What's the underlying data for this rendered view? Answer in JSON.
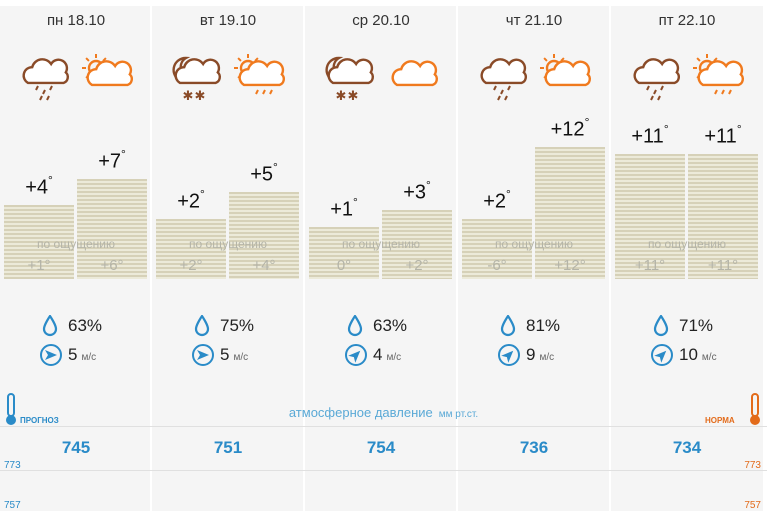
{
  "days": [
    {
      "date": "пн 18.10",
      "icons": [
        "rain-cloud",
        "sun-cloud"
      ],
      "day_temp": "+4",
      "night_temp": "+7",
      "day_level": 0.4,
      "night_level": 0.54,
      "feels_label": "по ощущению",
      "feels_day": "+1°",
      "feels_night": "+6°",
      "humidity": "63%",
      "wind_speed": "5",
      "wind_unit": "м/с",
      "wind_dir": "east",
      "pressure": "745"
    },
    {
      "date": "вт 19.10",
      "icons": [
        "moon-snow-cloud",
        "sun-rain-cloud"
      ],
      "day_temp": "+2",
      "night_temp": "+5",
      "day_level": 0.32,
      "night_level": 0.47,
      "feels_label": "по ощущению",
      "feels_day": "+2°",
      "feels_night": "+4°",
      "humidity": "75%",
      "wind_speed": "5",
      "wind_unit": "м/с",
      "wind_dir": "east",
      "pressure": "751"
    },
    {
      "date": "ср 20.10",
      "icons": [
        "moon-snow-cloud",
        "cloud"
      ],
      "day_temp": "+1",
      "night_temp": "+3",
      "day_level": 0.28,
      "night_level": 0.37,
      "feels_label": "по ощущению",
      "feels_day": "0°",
      "feels_night": "+2°",
      "humidity": "63%",
      "wind_speed": "4",
      "wind_unit": "м/с",
      "wind_dir": "northeast",
      "pressure": "754"
    },
    {
      "date": "чт 21.10",
      "icons": [
        "rain-cloud",
        "sun-cloud"
      ],
      "day_temp": "+2",
      "night_temp": "+12",
      "day_level": 0.32,
      "night_level": 0.71,
      "feels_label": "по ощущению",
      "feels_day": "-6°",
      "feels_night": "+12°",
      "humidity": "81%",
      "wind_speed": "9",
      "wind_unit": "м/с",
      "wind_dir": "northeast",
      "pressure": "736"
    },
    {
      "date": "пт 22.10",
      "icons": [
        "rain-cloud",
        "sun-rain-cloud"
      ],
      "day_temp": "+11",
      "night_temp": "+11",
      "day_level": 0.67,
      "night_level": 0.67,
      "feels_label": "по ощущению",
      "feels_day": "+11°",
      "feels_night": "+11°",
      "humidity": "71%",
      "wind_speed": "10",
      "wind_unit": "м/с",
      "wind_dir": "northeast",
      "pressure": "734"
    }
  ],
  "degree_symbol": "°",
  "pressure_section": {
    "title": "атмосферное давление",
    "units": "мм рт.ст.",
    "scale_top": "773",
    "scale_bottom": "757"
  },
  "tags": {
    "forecast": "ПРОГНОЗ",
    "norm": "НОРМА"
  },
  "colors": {
    "accent": "#2a8bc8",
    "icon_brown": "#8a4b28",
    "icon_orange": "#f07a1e",
    "norm_orange": "#e36b1a",
    "bar_stripe": "#d6d1b8"
  }
}
